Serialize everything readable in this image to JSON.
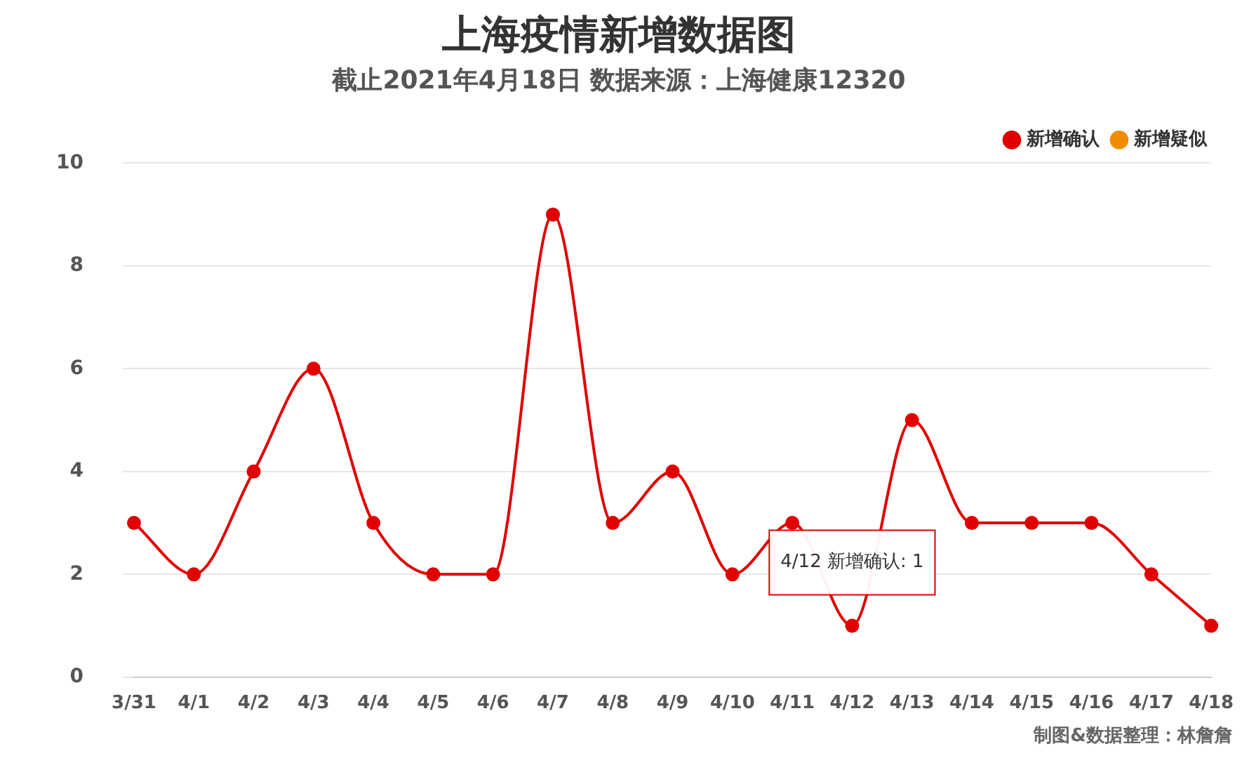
{
  "chart_data": {
    "type": "line",
    "title": "上海疫情新增数据图",
    "subtitle": "截止2021年4月18日 数据来源：上海健康12320",
    "categories": [
      "3/31",
      "4/1",
      "4/2",
      "4/3",
      "4/4",
      "4/5",
      "4/6",
      "4/7",
      "4/8",
      "4/9",
      "4/10",
      "4/11",
      "4/12",
      "4/13",
      "4/14",
      "4/15",
      "4/16",
      "4/17",
      "4/18"
    ],
    "series": [
      {
        "name": "新增确认",
        "color": "#e00000",
        "values": [
          3,
          2,
          4,
          6,
          3,
          2,
          2,
          9,
          3,
          4,
          2,
          3,
          1,
          5,
          3,
          3,
          3,
          2,
          1
        ]
      },
      {
        "name": "新增疑似",
        "color": "#f08c00",
        "values": [
          null,
          null,
          null,
          null,
          null,
          null,
          null,
          null,
          null,
          null,
          null,
          null,
          null,
          null,
          null,
          null,
          null,
          null,
          null
        ]
      }
    ],
    "ylim": [
      0,
      10
    ],
    "yticks": [
      0,
      2,
      4,
      6,
      8,
      10
    ],
    "grid": "y",
    "legend": "top right",
    "marker": "circle",
    "line_style": "solid",
    "annotations": [
      {
        "text": "4/12 新增确认: 1",
        "x": "4/12",
        "y": 1
      },
      "制图&数据整理：林詹詹"
    ]
  }
}
